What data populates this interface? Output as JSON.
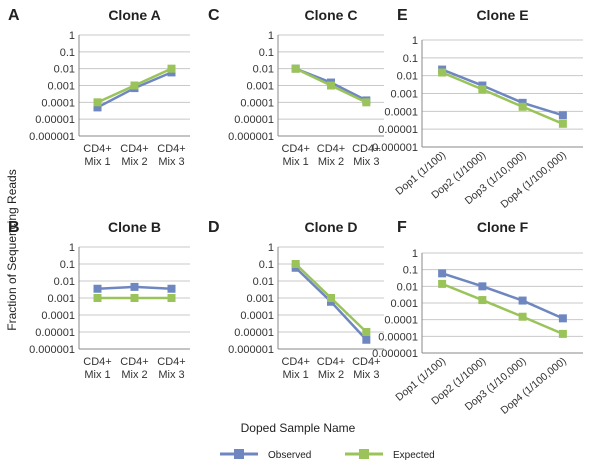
{
  "figure": {
    "ylabel": "Fraction of Sequencing Reads",
    "xlabel": "Doped Sample Name",
    "legend": [
      {
        "name": "Observed",
        "color": "#6f87c0"
      },
      {
        "name": "Expected",
        "color": "#9ac35a"
      }
    ]
  },
  "chart_data": [
    {
      "letter": "A",
      "title": "Clone A",
      "type": "line",
      "scale": "log",
      "yticks": [
        "1",
        "0.1",
        "0.01",
        "0.001",
        "0.0001",
        "0.00001",
        "0.000001"
      ],
      "categories": [
        [
          "CD4+",
          "Mix 1"
        ],
        [
          "CD4+",
          "Mix 2"
        ],
        [
          "CD4+",
          "Mix 3"
        ]
      ],
      "series": [
        {
          "name": "Observed",
          "values": [
            5e-05,
            0.0007,
            0.006
          ]
        },
        {
          "name": "Expected",
          "values": [
            0.0001,
            0.001,
            0.01
          ]
        }
      ]
    },
    {
      "letter": "C",
      "title": "Clone C",
      "type": "line",
      "scale": "log",
      "yticks": [
        "1",
        "0.1",
        "0.01",
        "0.001",
        "0.0001",
        "0.00001",
        "0.000001"
      ],
      "categories": [
        [
          "CD4+",
          "Mix 1"
        ],
        [
          "CD4+",
          "Mix 2"
        ],
        [
          "CD4+",
          "Mix 3"
        ]
      ],
      "series": [
        {
          "name": "Observed",
          "values": [
            0.01,
            0.0015,
            0.00013
          ]
        },
        {
          "name": "Expected",
          "values": [
            0.01,
            0.001,
            0.0001
          ]
        }
      ]
    },
    {
      "letter": "E",
      "title": "Clone E",
      "type": "line",
      "scale": "log",
      "yticks": [
        "1",
        "0.1",
        "0.01",
        "0.001",
        "0.0001",
        "0.00001",
        "0.000001"
      ],
      "categories": [
        "Dop1 (1/100)",
        "Dop2 (1/1000)",
        "Dop3 (1/10,000)",
        "Dop4 (1/100,000)"
      ],
      "series": [
        {
          "name": "Observed",
          "values": [
            0.022,
            0.0028,
            0.0003,
            6e-05
          ]
        },
        {
          "name": "Expected",
          "values": [
            0.015,
            0.0017,
            0.00018,
            2e-05
          ]
        }
      ]
    },
    {
      "letter": "B",
      "title": "Clone B",
      "type": "line",
      "scale": "log",
      "yticks": [
        "1",
        "0.1",
        "0.01",
        "0.001",
        "0.0001",
        "0.00001",
        "0.000001"
      ],
      "categories": [
        [
          "CD4+",
          "Mix 1"
        ],
        [
          "CD4+",
          "Mix 2"
        ],
        [
          "CD4+",
          "Mix 3"
        ]
      ],
      "series": [
        {
          "name": "Observed",
          "values": [
            0.0035,
            0.0045,
            0.0035
          ]
        },
        {
          "name": "Expected",
          "values": [
            0.001,
            0.001,
            0.001
          ]
        }
      ]
    },
    {
      "letter": "D",
      "title": "Clone D",
      "type": "line",
      "scale": "log",
      "yticks": [
        "1",
        "0.1",
        "0.01",
        "0.001",
        "0.0001",
        "0.00001",
        "0.000001"
      ],
      "categories": [
        [
          "CD4+",
          "Mix 1"
        ],
        [
          "CD4+",
          "Mix 2"
        ],
        [
          "CD4+",
          "Mix 3"
        ]
      ],
      "series": [
        {
          "name": "Observed",
          "values": [
            0.06,
            0.0006,
            3.5e-06
          ]
        },
        {
          "name": "Expected",
          "values": [
            0.1,
            0.001,
            1e-05
          ]
        }
      ]
    },
    {
      "letter": "F",
      "title": "Clone F",
      "type": "line",
      "scale": "log",
      "yticks": [
        "1",
        "0.1",
        "0.01",
        "0.001",
        "0.0001",
        "0.00001",
        "0.000001"
      ],
      "categories": [
        "Dop1 (1/100)",
        "Dop2 (1/1000)",
        "Dop3 (1/10,000)",
        "Dop4 (1/100,000)"
      ],
      "series": [
        {
          "name": "Observed",
          "values": [
            0.06,
            0.01,
            0.0014,
            0.00012
          ]
        },
        {
          "name": "Expected",
          "values": [
            0.014,
            0.0015,
            0.00015,
            1.4e-05
          ]
        }
      ]
    }
  ]
}
